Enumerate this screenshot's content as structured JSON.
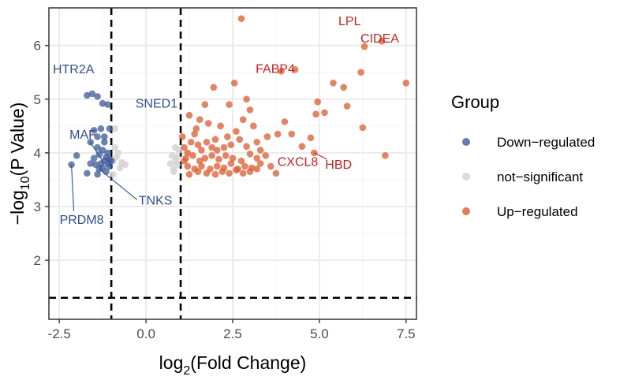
{
  "chart_data": {
    "type": "scatter",
    "title": "",
    "xlabel": "log",
    "xlabel_sub": "2",
    "xlabel_rest": "(Fold Change)",
    "ylabel": "−log",
    "ylabel_sub": "10",
    "ylabel_rest": "(P Value)",
    "xlim": [
      -2.8,
      7.8
    ],
    "ylim": [
      0.9,
      6.7
    ],
    "x_ticks": [
      -2.5,
      0.0,
      2.5,
      5.0,
      7.5
    ],
    "x_tick_labels": [
      "-2.5",
      "0.0",
      "2.5",
      "5.0",
      "7.5"
    ],
    "y_ticks": [
      2,
      3,
      4,
      5,
      6
    ],
    "y_tick_labels": [
      "2",
      "3",
      "4",
      "5",
      "6"
    ],
    "thresholds": {
      "x": [
        -1,
        1
      ],
      "y": 1.3
    },
    "colors": {
      "down": "#3c5a9a",
      "ns": "#d3d3d3",
      "up": "#dd5b2c",
      "down_label": "#2f4f8f",
      "up_label": "#cc1f1f",
      "grid_major": "#ebebeb",
      "grid_minor": "#f5f5f5"
    },
    "legend": {
      "title": "Group",
      "position": "right",
      "items": [
        {
          "label": "Down−regulated",
          "key": "down"
        },
        {
          "label": "not−significant",
          "key": "ns"
        },
        {
          "label": "Up−regulated",
          "key": "up"
        }
      ]
    },
    "series": [
      {
        "name": "Down−regulated",
        "key": "down",
        "points": [
          [
            -1.55,
            5.1
          ],
          [
            -1.7,
            5.07
          ],
          [
            -1.4,
            5.05
          ],
          [
            -1.25,
            4.92
          ],
          [
            -1.1,
            4.9
          ],
          [
            -1.3,
            4.45
          ],
          [
            -1.5,
            4.42
          ],
          [
            -1.2,
            4.3
          ],
          [
            -1.6,
            4.2
          ],
          [
            -1.4,
            4.1
          ],
          [
            -1.25,
            4.05
          ],
          [
            -1.1,
            4.0
          ],
          [
            -1.35,
            3.97
          ],
          [
            -1.15,
            3.92
          ],
          [
            -1.05,
            3.88
          ],
          [
            -1.5,
            3.9
          ],
          [
            -1.2,
            3.85
          ],
          [
            -1.3,
            3.8
          ],
          [
            -1.45,
            3.78
          ],
          [
            -1.1,
            3.8
          ],
          [
            -1.25,
            3.72
          ],
          [
            -1.35,
            3.7
          ],
          [
            -1.15,
            3.65
          ],
          [
            -1.05,
            3.75
          ],
          [
            -1.6,
            3.8
          ],
          [
            -1.4,
            3.6
          ],
          [
            -1.0,
            3.85
          ],
          [
            -2.0,
            3.95
          ],
          [
            -2.15,
            3.78
          ],
          [
            -1.7,
            3.62
          ],
          [
            -1.2,
            4.2
          ],
          [
            -1.05,
            4.45
          ],
          [
            -1.4,
            4.3
          ]
        ]
      },
      {
        "name": "not−significant",
        "key": "ns",
        "points": [
          [
            -0.95,
            3.85
          ],
          [
            -0.85,
            3.92
          ],
          [
            -0.75,
            3.72
          ],
          [
            -0.7,
            3.82
          ],
          [
            -0.9,
            4.1
          ],
          [
            -0.8,
            4.0
          ],
          [
            -0.6,
            3.78
          ],
          [
            0.8,
            3.7
          ],
          [
            0.85,
            3.85
          ],
          [
            0.75,
            3.95
          ],
          [
            0.9,
            3.78
          ],
          [
            0.95,
            4.05
          ],
          [
            0.7,
            3.8
          ],
          [
            0.85,
            4.1
          ],
          [
            0.8,
            3.65
          ],
          [
            0.9,
            3.92
          ],
          [
            -0.9,
            4.45
          ],
          [
            -0.95,
            3.6
          ]
        ]
      },
      {
        "name": "Up−regulated",
        "key": "up",
        "points": [
          [
            2.75,
            6.5
          ],
          [
            6.8,
            6.08
          ],
          [
            6.3,
            5.98
          ],
          [
            3.9,
            5.52
          ],
          [
            4.3,
            5.55
          ],
          [
            6.2,
            5.5
          ],
          [
            5.4,
            5.3
          ],
          [
            5.7,
            5.22
          ],
          [
            7.5,
            5.3
          ],
          [
            4.95,
            4.95
          ],
          [
            5.15,
            4.75
          ],
          [
            4.9,
            4.72
          ],
          [
            5.8,
            4.87
          ],
          [
            6.25,
            4.47
          ],
          [
            6.9,
            3.95
          ],
          [
            4.0,
            4.58
          ],
          [
            3.8,
            4.35
          ],
          [
            3.5,
            4.3
          ],
          [
            4.2,
            4.35
          ],
          [
            4.5,
            4.12
          ],
          [
            4.75,
            4.28
          ],
          [
            4.85,
            4.0
          ],
          [
            1.95,
            5.22
          ],
          [
            2.55,
            5.3
          ],
          [
            1.7,
            4.9
          ],
          [
            2.9,
            5.0
          ],
          [
            2.8,
            4.62
          ],
          [
            3.0,
            4.8
          ],
          [
            2.4,
            4.9
          ],
          [
            1.55,
            4.62
          ],
          [
            1.4,
            4.35
          ],
          [
            1.3,
            4.2
          ],
          [
            1.25,
            4.7
          ],
          [
            1.8,
            4.55
          ],
          [
            2.15,
            4.5
          ],
          [
            2.6,
            4.4
          ],
          [
            3.1,
            4.5
          ],
          [
            3.2,
            4.2
          ],
          [
            1.5,
            4.15
          ],
          [
            1.6,
            4.05
          ],
          [
            1.75,
            4.2
          ],
          [
            1.9,
            4.1
          ],
          [
            2.05,
            4.05
          ],
          [
            2.25,
            4.1
          ],
          [
            2.45,
            4.15
          ],
          [
            2.7,
            4.25
          ],
          [
            2.9,
            4.12
          ],
          [
            3.3,
            4.05
          ],
          [
            1.2,
            4.0
          ],
          [
            1.15,
            3.9
          ],
          [
            1.35,
            3.95
          ],
          [
            1.55,
            3.85
          ],
          [
            1.7,
            3.9
          ],
          [
            1.9,
            3.95
          ],
          [
            2.1,
            3.88
          ],
          [
            2.3,
            3.95
          ],
          [
            2.5,
            3.9
          ],
          [
            2.75,
            3.85
          ],
          [
            3.0,
            3.98
          ],
          [
            3.2,
            3.9
          ],
          [
            3.45,
            3.95
          ],
          [
            1.2,
            3.75
          ],
          [
            1.4,
            3.7
          ],
          [
            1.6,
            3.75
          ],
          [
            1.85,
            3.7
          ],
          [
            2.05,
            3.75
          ],
          [
            2.25,
            3.72
          ],
          [
            2.45,
            3.8
          ],
          [
            2.65,
            3.7
          ],
          [
            2.85,
            3.75
          ],
          [
            3.05,
            3.72
          ],
          [
            3.3,
            3.8
          ],
          [
            3.6,
            3.75
          ],
          [
            1.25,
            3.6
          ],
          [
            1.5,
            3.65
          ],
          [
            1.75,
            3.62
          ],
          [
            2.0,
            3.6
          ],
          [
            2.2,
            3.65
          ],
          [
            2.4,
            3.62
          ],
          [
            2.6,
            3.68
          ],
          [
            2.8,
            3.62
          ],
          [
            3.0,
            3.65
          ],
          [
            3.2,
            3.7
          ],
          [
            3.75,
            3.62
          ],
          [
            1.1,
            3.85
          ],
          [
            1.05,
            4.3
          ],
          [
            1.1,
            4.1
          ],
          [
            1.45,
            4.45
          ],
          [
            2.0,
            4.25
          ],
          [
            2.35,
            4.3
          ]
        ]
      }
    ],
    "annotations": [
      {
        "text": "HTR2A",
        "group": "down",
        "x": -1.55,
        "y": 5.1
      },
      {
        "text": "SNED1",
        "group": "down",
        "x": -1.1,
        "y": 4.9
      },
      {
        "text": "MAF",
        "group": "down",
        "x": -1.25,
        "y": 3.85
      },
      {
        "text": "TNKS",
        "group": "down",
        "x": -1.35,
        "y": 3.7
      },
      {
        "text": "PRDM8",
        "group": "down",
        "x": -2.15,
        "y": 3.78
      },
      {
        "text": "LPL",
        "group": "up",
        "x": 6.8,
        "y": 6.08
      },
      {
        "text": "FABP4",
        "group": "up",
        "x": 4.3,
        "y": 5.55
      },
      {
        "text": "CIDEA",
        "group": "up",
        "x": 6.3,
        "y": 5.98
      },
      {
        "text": "CXCL8",
        "group": "up",
        "x": 3.45,
        "y": 3.95
      },
      {
        "text": "HBD",
        "group": "up",
        "x": 4.85,
        "y": 4.0
      }
    ]
  }
}
